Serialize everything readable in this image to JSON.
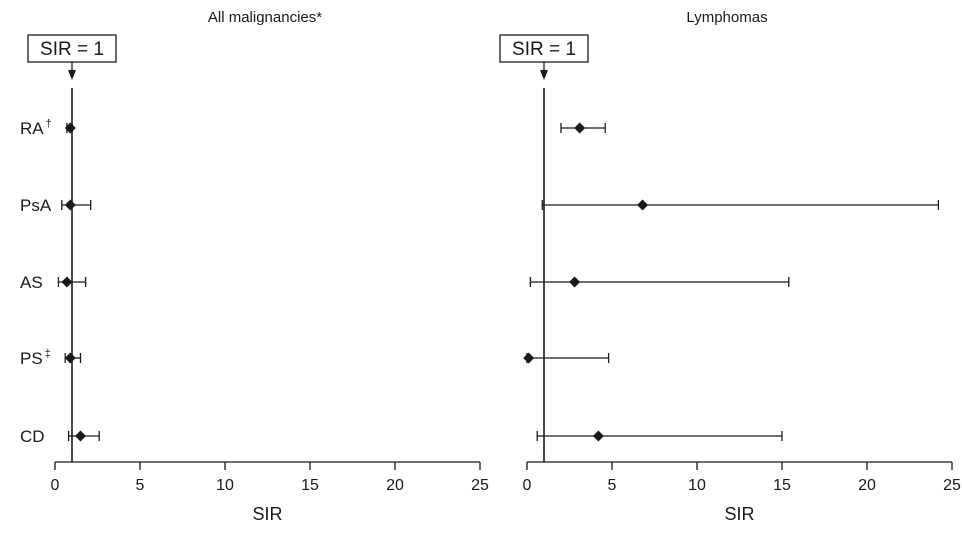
{
  "chart_data": [
    {
      "type": "forest",
      "title": "All malignancies*",
      "xlabel": "SIR",
      "xlim": [
        0,
        25
      ],
      "xticks": [
        0,
        5,
        10,
        15,
        20,
        25
      ],
      "reference": {
        "value": 1,
        "label": "SIR = 1"
      },
      "categories": [
        {
          "label": "RA",
          "sup": "†",
          "estimate": 0.9,
          "ci": [
            0.7,
            1.0
          ]
        },
        {
          "label": "PsA",
          "sup": "",
          "estimate": 0.9,
          "ci": [
            0.4,
            2.1
          ]
        },
        {
          "label": "AS",
          "sup": "",
          "estimate": 0.7,
          "ci": [
            0.2,
            1.8
          ]
        },
        {
          "label": "PS",
          "sup": "‡",
          "estimate": 0.9,
          "ci": [
            0.6,
            1.5
          ]
        },
        {
          "label": "CD",
          "sup": "",
          "estimate": 1.5,
          "ci": [
            0.8,
            2.6
          ]
        }
      ]
    },
    {
      "type": "forest",
      "title": "Lymphomas",
      "xlabel": "SIR",
      "xlim": [
        0,
        25
      ],
      "xticks": [
        0,
        5,
        10,
        15,
        20,
        25
      ],
      "reference": {
        "value": 1,
        "label": "SIR = 1"
      },
      "categories": [
        {
          "label": "RA",
          "estimate": 3.1,
          "ci": [
            2.0,
            4.6
          ]
        },
        {
          "label": "PsA",
          "estimate": 6.8,
          "ci": [
            0.9,
            24.2
          ]
        },
        {
          "label": "AS",
          "estimate": 2.8,
          "ci": [
            0.2,
            15.4
          ]
        },
        {
          "label": "PS",
          "estimate": 0.1,
          "ci": [
            0.0,
            4.8
          ]
        },
        {
          "label": "CD",
          "estimate": 4.2,
          "ci": [
            0.6,
            15.0
          ]
        }
      ]
    }
  ]
}
